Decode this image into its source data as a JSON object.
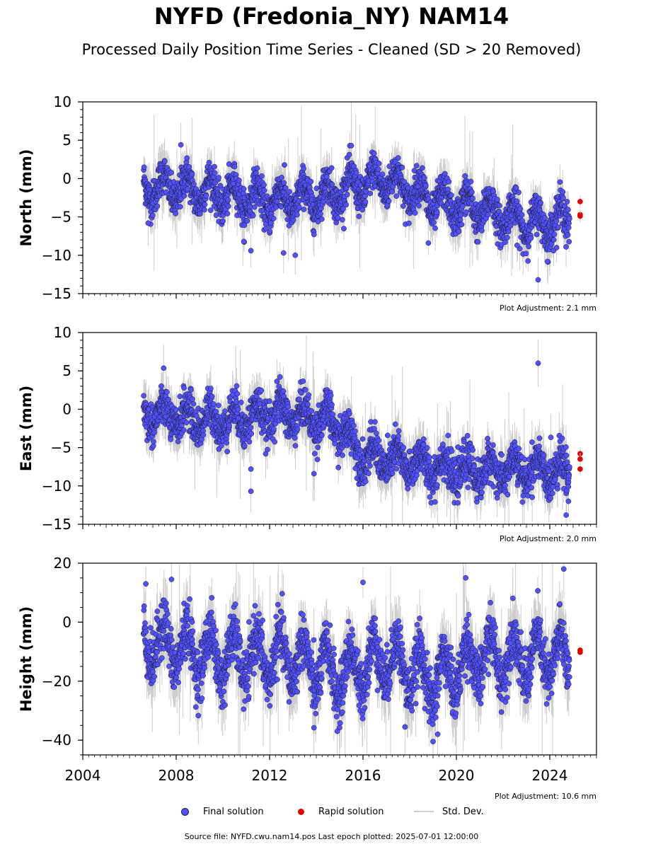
{
  "title": "NYFD (Fredonia_NY) NAM14",
  "subtitle": "Processed Daily Position Time Series - Cleaned (SD > 20 Removed)",
  "legend": {
    "final": "Final solution",
    "rapid": "Rapid solution",
    "std": "Std. Dev."
  },
  "footer": "Source file: NYFD.cwu.nam14.pos  Last epoch plotted: 2025-07-01 12:00:00",
  "colors": {
    "final": "#5050ff",
    "rapid": "#e00000",
    "std": "#c8c8c8",
    "outline": "#1a1a1a"
  },
  "chart_data": [
    {
      "type": "scatter",
      "ylabel": "North (mm)",
      "ylim": [
        -15,
        10
      ],
      "yticks": [
        10,
        5,
        0,
        -5,
        -10,
        -15
      ],
      "xlim": [
        2004,
        2026
      ],
      "adjustment": "Plot Adjustment: 2.1 mm",
      "trend": [
        [
          2006.6,
          -1.0
        ],
        [
          2009.0,
          -1.5
        ],
        [
          2012.0,
          -3.0
        ],
        [
          2014.0,
          -2.5
        ],
        [
          2017.0,
          0.0
        ],
        [
          2019.0,
          -3.0
        ],
        [
          2021.0,
          -4.0
        ],
        [
          2023.5,
          -6.0
        ],
        [
          2025.0,
          -5.0
        ]
      ],
      "amplitude": 1.8,
      "noise": 1.2,
      "outliers": [
        [
          2006.8,
          -5.8
        ],
        [
          2008.2,
          4.4
        ],
        [
          2010.9,
          -8.2
        ],
        [
          2011.2,
          -9.4
        ],
        [
          2012.6,
          -9.7
        ],
        [
          2013.1,
          -10.0
        ],
        [
          2015.5,
          4.3
        ],
        [
          2018.8,
          -8.4
        ],
        [
          2022.6,
          -8.7
        ],
        [
          2023.5,
          -13.2
        ],
        [
          2023.9,
          -10.8
        ],
        [
          2024.7,
          -8.9
        ]
      ],
      "rapid": [
        [
          2025.3,
          -3.0
        ],
        [
          2025.3,
          -4.7
        ],
        [
          2025.3,
          -4.9
        ]
      ]
    },
    {
      "type": "scatter",
      "ylabel": "East (mm)",
      "ylim": [
        -15,
        10
      ],
      "yticks": [
        10,
        5,
        0,
        -5,
        -10,
        -15
      ],
      "xlim": [
        2004,
        2026
      ],
      "adjustment": "Plot Adjustment: 2.0 mm",
      "trend": [
        [
          2006.6,
          -0.5
        ],
        [
          2008.0,
          -1.0
        ],
        [
          2010.0,
          -1.5
        ],
        [
          2012.5,
          -0.5
        ],
        [
          2014.5,
          -1.5
        ],
        [
          2015.0,
          -2.5
        ],
        [
          2016.0,
          -6.0
        ],
        [
          2018.0,
          -7.0
        ],
        [
          2020.0,
          -8.0
        ],
        [
          2023.0,
          -8.0
        ],
        [
          2024.8,
          -8.0
        ]
      ],
      "amplitude": 1.5,
      "noise": 1.3,
      "outliers": [
        [
          2011.2,
          -10.7
        ],
        [
          2011.2,
          -7.8
        ],
        [
          2013.9,
          -8.4
        ],
        [
          2023.5,
          6.0
        ],
        [
          2024.7,
          -13.8
        ],
        [
          2024.8,
          -12.0
        ]
      ],
      "rapid": [
        [
          2025.3,
          -5.8
        ],
        [
          2025.3,
          -6.5
        ],
        [
          2025.3,
          -7.8
        ]
      ]
    },
    {
      "type": "scatter",
      "ylabel": "Height (mm)",
      "ylim": [
        -45,
        20
      ],
      "yticks": [
        20,
        0,
        -20,
        -40
      ],
      "xlim": [
        2004,
        2026
      ],
      "xticks": [
        2004,
        2008,
        2012,
        2016,
        2020,
        2024
      ],
      "adjustment": "Plot Adjustment: 10.6 mm",
      "trend": [
        [
          2006.6,
          -6.0
        ],
        [
          2010.0,
          -12.0
        ],
        [
          2013.0,
          -12.0
        ],
        [
          2015.0,
          -18.0
        ],
        [
          2017.0,
          -12.0
        ],
        [
          2019.0,
          -20.0
        ],
        [
          2021.0,
          -12.0
        ],
        [
          2024.8,
          -12.0
        ]
      ],
      "amplitude": 8.0,
      "noise": 4.5,
      "outliers": [
        [
          2006.7,
          13.0
        ],
        [
          2007.8,
          14.5
        ],
        [
          2016.0,
          13.5
        ],
        [
          2020.4,
          15.0
        ],
        [
          2024.6,
          18.0
        ],
        [
          2019.0,
          -40.5
        ],
        [
          2019.2,
          -38.0
        ],
        [
          2014.9,
          -37.0
        ],
        [
          2017.8,
          -35.5
        ],
        [
          2013.9,
          -35.8
        ]
      ],
      "rapid": [
        [
          2025.3,
          -9.5
        ],
        [
          2025.3,
          -10.2
        ]
      ]
    }
  ]
}
